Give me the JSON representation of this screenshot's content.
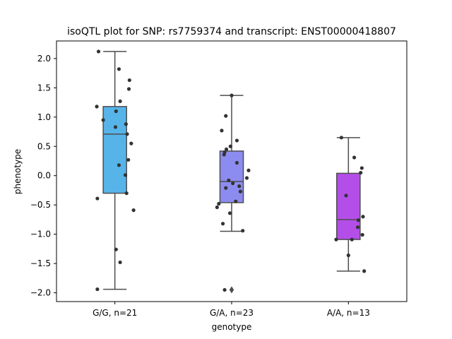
{
  "chart_data": {
    "type": "box",
    "title": "isoQTL plot for SNP: rs7759374 and transcript: ENST00000418807",
    "xlabel": "genotype",
    "ylabel": "phenotype",
    "ylim": [
      -2.15,
      2.3
    ],
    "yticks": [
      -2.0,
      -1.5,
      -1.0,
      -0.5,
      0.0,
      0.5,
      1.0,
      1.5,
      2.0
    ],
    "ytick_labels": [
      "−2.0",
      "−1.5",
      "−1.0",
      "−0.5",
      "0.0",
      "0.5",
      "1.0",
      "1.5",
      "2.0"
    ],
    "grid": false,
    "categories": [
      "G/G, n=21",
      "G/A, n=23",
      "A/A, n=13"
    ],
    "colors": [
      "#56b4e9",
      "#8c8cf0",
      "#b44ee8"
    ],
    "boxes": [
      {
        "q1": -0.3,
        "median": 0.71,
        "q3": 1.18,
        "whisker_low": -1.94,
        "whisker_high": 2.12,
        "outliers": []
      },
      {
        "q1": -0.46,
        "median": -0.1,
        "q3": 0.42,
        "whisker_low": -0.95,
        "whisker_high": 1.37,
        "outliers": [
          -1.95
        ]
      },
      {
        "q1": -1.09,
        "median": -0.75,
        "q3": 0.04,
        "whisker_low": -1.63,
        "whisker_high": 0.65,
        "outliers": []
      }
    ],
    "points": [
      [
        [
          -0.28,
          2.12
        ],
        [
          0.07,
          1.82
        ],
        [
          0.25,
          1.63
        ],
        [
          0.24,
          1.48
        ],
        [
          0.09,
          1.27
        ],
        [
          -0.31,
          1.18
        ],
        [
          0.02,
          1.1
        ],
        [
          -0.2,
          0.95
        ],
        [
          0.19,
          0.88
        ],
        [
          0.01,
          0.83
        ],
        [
          0.21,
          0.71
        ],
        [
          0.28,
          0.55
        ],
        [
          0.23,
          0.27
        ],
        [
          0.07,
          0.18
        ],
        [
          0.18,
          0.01
        ],
        [
          0.2,
          -0.3
        ],
        [
          -0.3,
          -0.39
        ],
        [
          0.32,
          -0.59
        ],
        [
          0.02,
          -1.26
        ],
        [
          0.09,
          -1.48
        ],
        [
          -0.3,
          -1.94
        ]
      ],
      [
        [
          0.0,
          1.37
        ],
        [
          -0.1,
          1.02
        ],
        [
          -0.17,
          0.77
        ],
        [
          0.09,
          0.6
        ],
        [
          -0.02,
          0.5
        ],
        [
          -0.09,
          0.45
        ],
        [
          -0.12,
          0.4
        ],
        [
          -0.13,
          0.36
        ],
        [
          0.09,
          0.22
        ],
        [
          0.29,
          0.09
        ],
        [
          0.26,
          -0.04
        ],
        [
          -0.05,
          -0.08
        ],
        [
          0.02,
          -0.13
        ],
        [
          0.13,
          -0.18
        ],
        [
          -0.1,
          -0.21
        ],
        [
          0.15,
          -0.27
        ],
        [
          0.07,
          -0.44
        ],
        [
          -0.22,
          -0.48
        ],
        [
          -0.25,
          -0.54
        ],
        [
          -0.03,
          -0.64
        ],
        [
          -0.15,
          -0.82
        ],
        [
          0.19,
          -0.94
        ],
        [
          -0.12,
          -1.95
        ]
      ],
      [
        [
          -0.12,
          0.65
        ],
        [
          0.1,
          0.31
        ],
        [
          0.23,
          0.13
        ],
        [
          0.21,
          0.05
        ],
        [
          -0.04,
          -0.34
        ],
        [
          0.25,
          -0.7
        ],
        [
          0.17,
          -0.76
        ],
        [
          0.16,
          -0.88
        ],
        [
          0.24,
          -1.01
        ],
        [
          -0.21,
          -1.09
        ],
        [
          0.06,
          -1.09
        ],
        [
          0.0,
          -1.36
        ],
        [
          0.27,
          -1.63
        ]
      ]
    ]
  }
}
